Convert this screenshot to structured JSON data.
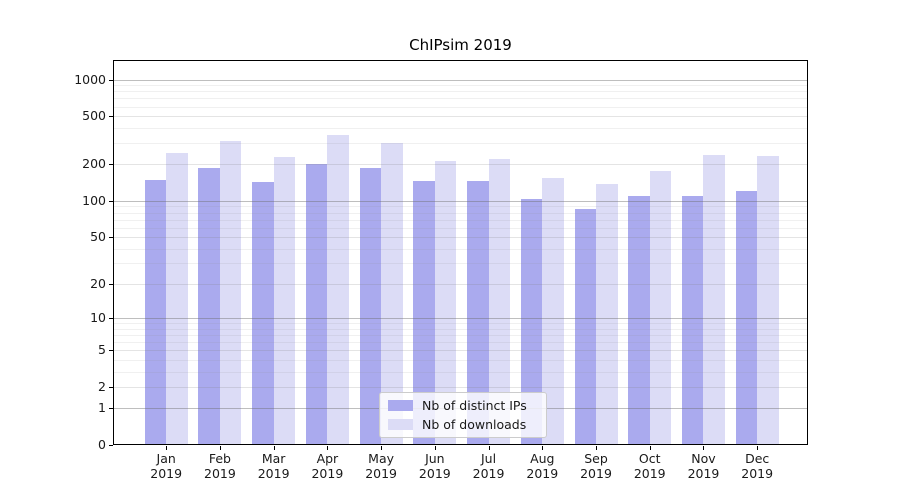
{
  "figure": {
    "title": "ChIPsim 2019",
    "background": "#ffffff"
  },
  "legend": {
    "items": [
      {
        "label": "Nb of distinct IPs",
        "color": "#aaaaee"
      },
      {
        "label": "Nb of downloads",
        "color": "#dcdcf6"
      }
    ]
  },
  "chart_data": {
    "type": "bar",
    "title": "ChIPsim 2019",
    "categories": [
      "Jan 2019",
      "Feb 2019",
      "Mar 2019",
      "Apr 2019",
      "May 2019",
      "Jun 2019",
      "Jul 2019",
      "Aug 2019",
      "Sep 2019",
      "Oct 2019",
      "Nov 2019",
      "Dec 2019"
    ],
    "series": [
      {
        "name": "Nb of distinct IPs",
        "color": "#aaaaee",
        "values": [
          150,
          188,
          142,
          200,
          188,
          145,
          145,
          103,
          85,
          110,
          110,
          120
        ]
      },
      {
        "name": "Nb of downloads",
        "color": "#dcdcf6",
        "values": [
          250,
          310,
          230,
          350,
          300,
          215,
          220,
          155,
          138,
          175,
          240,
          235
        ]
      }
    ],
    "xlabel": "",
    "ylabel": "",
    "yscale": "log1p-symlog",
    "yticks": [
      0,
      1,
      2,
      5,
      10,
      20,
      50,
      100,
      200,
      500,
      1000
    ],
    "ylim": [
      0,
      1400
    ],
    "grid": "both-horizontal",
    "grid_on_top_of_bars": true,
    "legend_position": "lower-center-inside",
    "bar_group_width": 0.8
  }
}
